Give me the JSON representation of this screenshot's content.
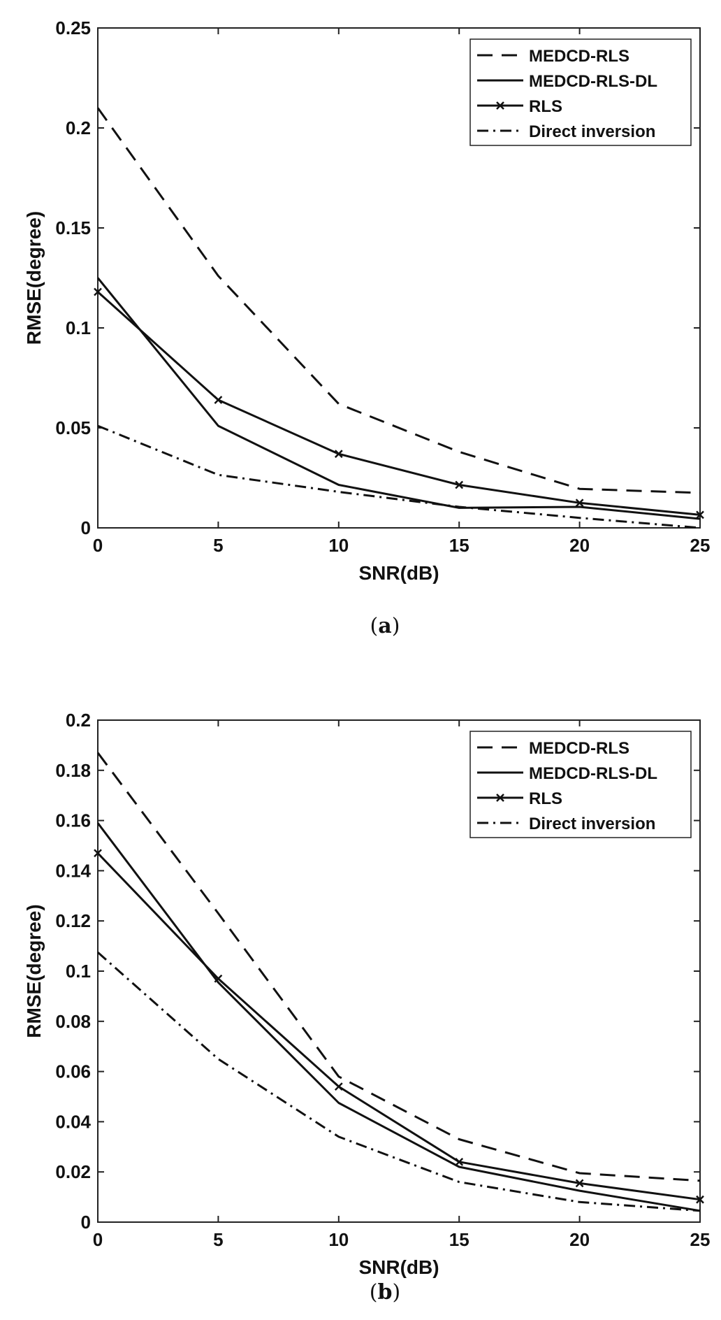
{
  "chart_data": [
    {
      "type": "line",
      "caption_open": "(",
      "caption_letter": "a",
      "caption_close": ")",
      "xlabel": "SNR(dB)",
      "ylabel": "RMSE(degree)",
      "xlim": [
        0,
        25
      ],
      "ylim": [
        0,
        0.25
      ],
      "xticks": [
        "0",
        "5",
        "10",
        "15",
        "20",
        "25"
      ],
      "yticks": [
        "0",
        "0.05",
        "0.1",
        "0.15",
        "0.2",
        "0.25"
      ],
      "x": [
        0,
        5,
        10,
        15,
        20,
        25
      ],
      "legend_position": "top-right",
      "series": [
        {
          "name": "MEDCD-RLS",
          "style": "dashed",
          "values": [
            0.21,
            0.126,
            0.062,
            0.038,
            0.0195,
            0.0175
          ]
        },
        {
          "name": "MEDCD-RLS-DL",
          "style": "solid",
          "values": [
            0.125,
            0.051,
            0.0215,
            0.01,
            0.0105,
            0.0045
          ]
        },
        {
          "name": "RLS",
          "style": "solid-x",
          "values": [
            0.118,
            0.064,
            0.037,
            0.0215,
            0.0125,
            0.0065
          ]
        },
        {
          "name": "Direct inversion",
          "style": "dashdot",
          "values": [
            0.051,
            0.0265,
            0.018,
            0.0105,
            0.005,
            0.0
          ]
        }
      ]
    },
    {
      "type": "line",
      "caption_open": "(",
      "caption_letter": "b",
      "caption_close": ")",
      "xlabel": "SNR(dB)",
      "ylabel": "RMSE(degree)",
      "xlim": [
        0,
        25
      ],
      "ylim": [
        0,
        0.2
      ],
      "xticks": [
        "0",
        "5",
        "10",
        "15",
        "20",
        "25"
      ],
      "yticks": [
        "0",
        "0.02",
        "0.04",
        "0.06",
        "0.08",
        "0.1",
        "0.12",
        "0.14",
        "0.16",
        "0.18",
        "0.2"
      ],
      "x": [
        0,
        5,
        10,
        15,
        20,
        25
      ],
      "legend_position": "top-right",
      "series": [
        {
          "name": "MEDCD-RLS",
          "style": "dashed",
          "values": [
            0.187,
            0.123,
            0.058,
            0.033,
            0.0195,
            0.0165
          ]
        },
        {
          "name": "MEDCD-RLS-DL",
          "style": "solid",
          "values": [
            0.159,
            0.0955,
            0.0475,
            0.022,
            0.0125,
            0.0045
          ]
        },
        {
          "name": "RLS",
          "style": "solid-x",
          "values": [
            0.147,
            0.097,
            0.054,
            0.024,
            0.0155,
            0.009
          ]
        },
        {
          "name": "Direct inversion",
          "style": "dashdot",
          "values": [
            0.1075,
            0.065,
            0.034,
            0.016,
            0.008,
            0.0045
          ]
        }
      ]
    }
  ]
}
